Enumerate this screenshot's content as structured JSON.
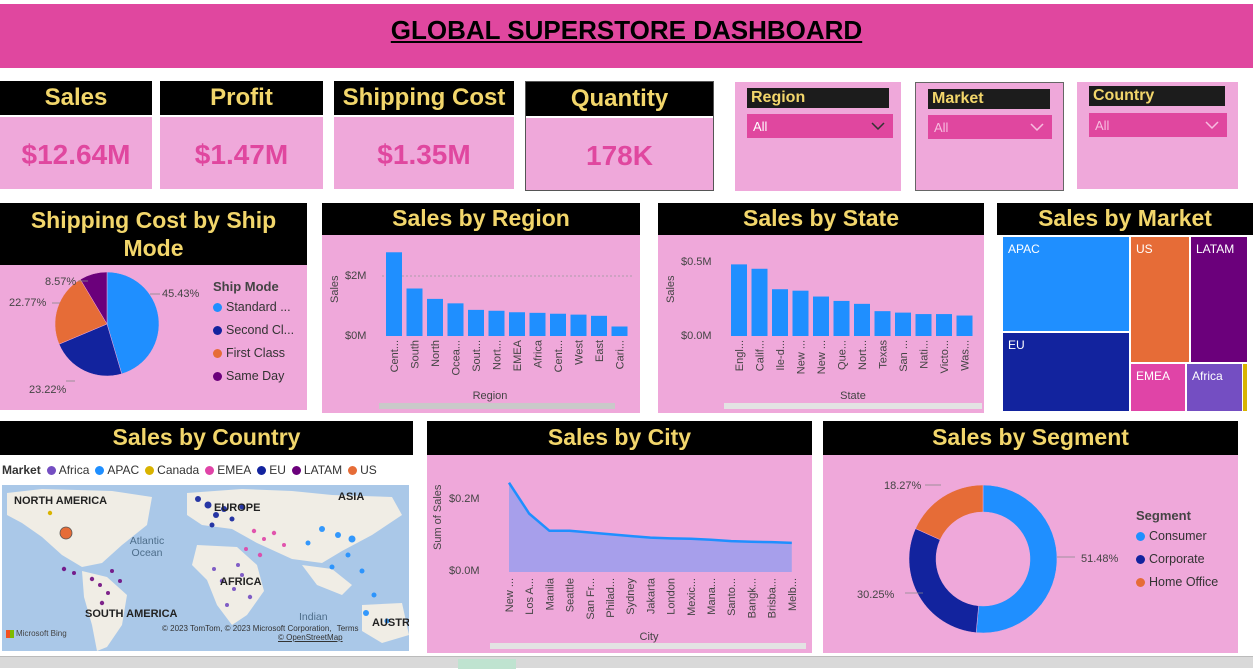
{
  "title": "GLOBAL SUPERSTORE DASHBOARD",
  "kpis": [
    {
      "label": "Sales",
      "value": "$12.64M"
    },
    {
      "label": "Profit",
      "value": "$1.47M"
    },
    {
      "label": "Shipping Cost",
      "value": "$1.35M"
    },
    {
      "label": "Quantity",
      "value": "178K"
    }
  ],
  "slicers": [
    {
      "label": "Region",
      "value": "All"
    },
    {
      "label": "Market",
      "value": "All"
    },
    {
      "label": "Country",
      "value": "All"
    }
  ],
  "colors": {
    "banner": "#e0479f",
    "card": "#efa8da",
    "header_bg": "#000000",
    "header_text": "#f2d66b",
    "kpi_text": "#e0479f",
    "bar_blue": "#1f8fff"
  },
  "shipping": {
    "title": "Shipping Cost by Ship Mode",
    "legend_title": "Ship Mode",
    "legend": [
      "Standard ...",
      "Second Cl...",
      "First Class",
      "Same Day"
    ],
    "labels": [
      "45.43%",
      "23.22%",
      "22.77%",
      "8.57%"
    ]
  },
  "region": {
    "title": "Sales by Region",
    "xlabel": "Region",
    "ylabel": "Sales",
    "yticks": [
      "$2M",
      "$0M"
    ],
    "categories": [
      "Cent...",
      "South",
      "North",
      "Ocea...",
      "Sout...",
      "Nort...",
      "EMEA",
      "Africa",
      "Cent...",
      "West",
      "East",
      "Cari..."
    ]
  },
  "state": {
    "title": "Sales by State",
    "xlabel": "State",
    "ylabel": "Sales",
    "yticks": [
      "$0.5M",
      "$0.0M"
    ],
    "categories": [
      "Engl...",
      "Calif...",
      "Ile-d...",
      "New ...",
      "New ...",
      "Que...",
      "Nort...",
      "Texas",
      "San ...",
      "Nati...",
      "Victo...",
      "Was..."
    ]
  },
  "market": {
    "title": "Sales by Market",
    "tiles": [
      "APAC",
      "US",
      "LATAM",
      "EU",
      "EMEA",
      "Africa"
    ]
  },
  "country": {
    "title": "Sales by Country",
    "legend_title": "Market",
    "legend": [
      "Africa",
      "APAC",
      "Canada",
      "EMEA",
      "EU",
      "LATAM",
      "US"
    ],
    "map_labels": [
      "NORTH AMERICA",
      "EUROPE",
      "ASIA",
      "AFRICA",
      "SOUTH AMERICA",
      "AUSTR"
    ],
    "ocean_labels": [
      "Atlantic Ocean",
      "Indian"
    ],
    "attribution": "© 2023 TomTom, © 2023 Microsoft Corporation,",
    "terms": "Terms",
    "osm": "© OpenStreetMap",
    "bing": "Microsoft Bing"
  },
  "city": {
    "title": "Sales by City",
    "xlabel": "City",
    "ylabel": "Sum of Sales",
    "yticks": [
      "$0.2M",
      "$0.0M"
    ],
    "categories": [
      "New ...",
      "Los A...",
      "Manila",
      "Seattle",
      "San Fr...",
      "Philad...",
      "Sydney",
      "Jakarta",
      "London",
      "Mexic...",
      "Mana...",
      "Santo...",
      "Bangk...",
      "Brisba...",
      "Melb..."
    ]
  },
  "segment": {
    "title": "Sales by Segment",
    "legend_title": "Segment",
    "legend": [
      "Consumer",
      "Corporate",
      "Home Office"
    ],
    "labels": [
      "51.48%",
      "30.25%",
      "18.27%"
    ]
  },
  "chart_data": [
    {
      "type": "pie",
      "title": "Shipping Cost by Ship Mode",
      "categories": [
        "Standard Class",
        "Second Class",
        "First Class",
        "Same Day"
      ],
      "values": [
        45.43,
        23.22,
        22.77,
        8.57
      ],
      "colors": [
        "#1f8fff",
        "#12239e",
        "#e66c37",
        "#6b007b"
      ]
    },
    {
      "type": "bar",
      "title": "Sales by Region",
      "categories": [
        "Cent...",
        "South",
        "North",
        "Ocea...",
        "Sout...",
        "Nort...",
        "EMEA",
        "Africa",
        "Cent...",
        "West",
        "East",
        "Cari..."
      ],
      "values": [
        2.82,
        1.6,
        1.25,
        1.1,
        0.88,
        0.85,
        0.8,
        0.78,
        0.75,
        0.72,
        0.68,
        0.32
      ],
      "ylim": [
        0,
        3.2
      ]
    },
    {
      "type": "bar",
      "title": "Sales by State",
      "categories": [
        "Engl...",
        "Calif...",
        "Ile-d...",
        "New ...",
        "New ...",
        "Que...",
        "Nort...",
        "Texas",
        "San ...",
        "Nati...",
        "Victo...",
        "Was..."
      ],
      "values": [
        0.49,
        0.46,
        0.32,
        0.31,
        0.27,
        0.24,
        0.22,
        0.17,
        0.16,
        0.15,
        0.15,
        0.14
      ],
      "ylim": [
        0,
        0.65
      ]
    },
    {
      "type": "area",
      "title": "Sales by City",
      "categories": [
        "New ...",
        "Los A...",
        "Manila",
        "Seattle",
        "San Fr...",
        "Philad...",
        "Sydney",
        "Jakarta",
        "London",
        "Mexic...",
        "Mana...",
        "Santo...",
        "Bangk...",
        "Brisba...",
        "Melb..."
      ],
      "values": [
        0.26,
        0.17,
        0.12,
        0.12,
        0.115,
        0.11,
        0.105,
        0.1,
        0.098,
        0.097,
        0.094,
        0.09,
        0.088,
        0.087,
        0.085
      ],
      "ylim": [
        0,
        0.3
      ]
    },
    {
      "type": "pie",
      "title": "Sales by Segment",
      "categories": [
        "Consumer",
        "Corporate",
        "Home Office"
      ],
      "values": [
        51.48,
        30.25,
        18.27
      ],
      "colors": [
        "#1f8fff",
        "#12239e",
        "#e66c37"
      ]
    }
  ]
}
